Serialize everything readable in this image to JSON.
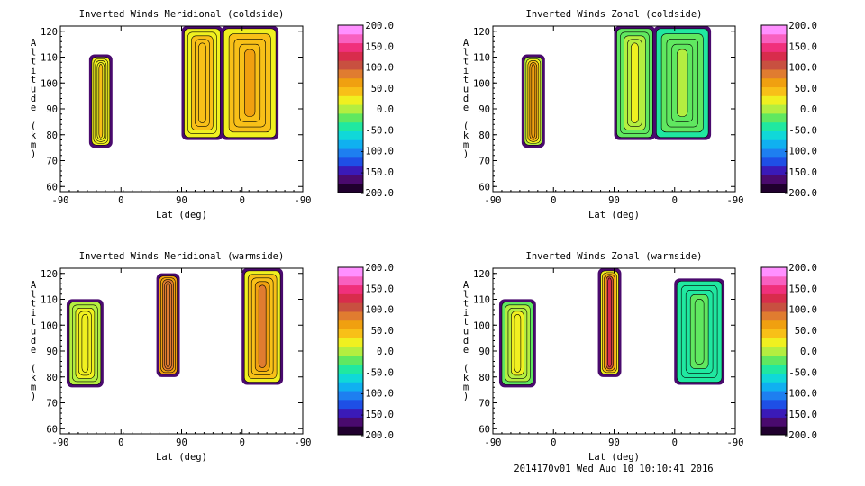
{
  "palette": [
    "#20002e",
    "#4a0a6e",
    "#3a1ab8",
    "#1e4fe6",
    "#1e7ff0",
    "#10b0f0",
    "#10d8d8",
    "#20e8a0",
    "#60e860",
    "#b4ee40",
    "#f0f020",
    "#f8c018",
    "#f0a010",
    "#e07c30",
    "#c85040",
    "#d82c4c",
    "#f0307c",
    "#f860c0",
    "#ff90ff"
  ],
  "colorbar_labels": [
    "200.0",
    "150.0",
    "100.0",
    "50.0",
    "0.0",
    "-50.0",
    "-100.0",
    "-150.0",
    "-200.0"
  ],
  "footer": "2014170v01 Wed Aug 10 10:10:41 2016",
  "chart_data": [
    {
      "type": "heatmap",
      "title": "Inverted Winds Meridional (coldside)",
      "xlabel": "Lat (deg)",
      "ylabel": "Altitude (km)",
      "xticks": [
        "-90",
        "0",
        "90",
        "0",
        "-90"
      ],
      "yticks": [
        "60",
        "70",
        "80",
        "90",
        "100",
        "110",
        "120"
      ],
      "ylim": [
        58,
        122
      ],
      "colorbar": {
        "min": -200,
        "max": 200,
        "labels": [
          "200.0",
          "150.0",
          "100.0",
          "50.0",
          "0.0",
          "-50.0",
          "-100.0",
          "-150.0",
          "-200.0"
        ]
      },
      "blobs": [
        {
          "lat": [
            -55,
            -35
          ],
          "alt": [
            76,
            110
          ],
          "value": 15,
          "core": 35
        },
        {
          "lat": [
            48,
            88
          ],
          "alt": [
            79,
            121
          ],
          "value": 25,
          "core": 50
        },
        {
          "lat": [
            92,
            150
          ],
          "alt": [
            79,
            121
          ],
          "value": 30,
          "core": 60
        }
      ]
    },
    {
      "type": "heatmap",
      "title": "Inverted Winds Zonal (coldside)",
      "xlabel": "Lat (deg)",
      "ylabel": "Altitude (km)",
      "xticks": [
        "-90",
        "0",
        "90",
        "0",
        "-90"
      ],
      "yticks": [
        "60",
        "70",
        "80",
        "90",
        "100",
        "110",
        "120"
      ],
      "ylim": [
        58,
        122
      ],
      "colorbar": {
        "min": -200,
        "max": 200,
        "labels": [
          "200.0",
          "150.0",
          "100.0",
          "50.0",
          "0.0",
          "-50.0",
          "-100.0",
          "-150.0",
          "-200.0"
        ]
      },
      "blobs": [
        {
          "lat": [
            -55,
            -35
          ],
          "alt": [
            76,
            110
          ],
          "value": 5,
          "core": 70
        },
        {
          "lat": [
            48,
            88
          ],
          "alt": [
            79,
            121
          ],
          "value": -20,
          "core": 15
        },
        {
          "lat": [
            92,
            150
          ],
          "alt": [
            79,
            121
          ],
          "value": -35,
          "core": -10
        }
      ]
    },
    {
      "type": "heatmap",
      "title": "Inverted Winds Meridional (warmside)",
      "xlabel": "Lat (deg)",
      "ylabel": "Altitude (km)",
      "xticks": [
        "-90",
        "0",
        "90",
        "0",
        "-90"
      ],
      "yticks": [
        "60",
        "70",
        "80",
        "90",
        "100",
        "110",
        "120"
      ],
      "ylim": [
        58,
        122
      ],
      "colorbar": {
        "min": -200,
        "max": 200,
        "labels": [
          "200.0",
          "150.0",
          "100.0",
          "50.0",
          "0.0",
          "-50.0",
          "-100.0",
          "-150.0",
          "-200.0"
        ]
      },
      "blobs": [
        {
          "lat": [
            -80,
            -45
          ],
          "alt": [
            77,
            109
          ],
          "value": 5,
          "core": 25
        },
        {
          "lat": [
            20,
            40
          ],
          "alt": [
            81,
            119
          ],
          "value": 60,
          "core": 90
        },
        {
          "lat": [
            115,
            155
          ],
          "alt": [
            78,
            121
          ],
          "value": 20,
          "core": 80
        }
      ]
    },
    {
      "type": "heatmap",
      "title": "Inverted Winds Zonal (warmside)",
      "xlabel": "Lat (deg)",
      "ylabel": "Altitude (km)",
      "xticks": [
        "-90",
        "0",
        "90",
        "0",
        "-90"
      ],
      "yticks": [
        "60",
        "70",
        "80",
        "90",
        "100",
        "110",
        "120"
      ],
      "ylim": [
        58,
        122
      ],
      "colorbar": {
        "min": -200,
        "max": 200,
        "labels": [
          "200.0",
          "150.0",
          "100.0",
          "50.0",
          "0.0",
          "-50.0",
          "-100.0",
          "-150.0",
          "-200.0"
        ]
      },
      "blobs": [
        {
          "lat": [
            -80,
            -45
          ],
          "alt": [
            77,
            109
          ],
          "value": -20,
          "core": 25
        },
        {
          "lat": [
            30,
            50
          ],
          "alt": [
            81,
            121
          ],
          "value": 20,
          "core": 120
        },
        {
          "lat": [
            115,
            165
          ],
          "alt": [
            78,
            117
          ],
          "value": -45,
          "core": -20
        }
      ]
    }
  ]
}
